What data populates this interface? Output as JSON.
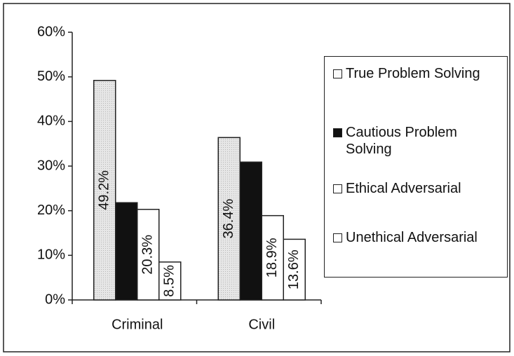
{
  "chart_data": {
    "type": "bar",
    "categories": [
      "Criminal",
      "Civil"
    ],
    "series": [
      {
        "name": "True Problem Solving",
        "color": "#e2e2e2",
        "values": [
          49.2,
          36.4
        ],
        "value_labels": [
          "49.2%",
          "36.4%"
        ]
      },
      {
        "name": "Cautious Problem Solving",
        "color": "#111111",
        "values": [
          21.8,
          30.9
        ]
      },
      {
        "name": "Ethical Adversarial",
        "color": "#ffffff",
        "values": [
          20.3,
          18.9
        ],
        "value_labels": [
          "20.3%",
          "18.9%"
        ]
      },
      {
        "name": "Unethical Adversarial",
        "color": "#ffffff",
        "values": [
          8.5,
          13.6
        ],
        "value_labels": [
          "8.5%",
          "13.6%"
        ]
      }
    ],
    "ylim": [
      0,
      60
    ],
    "yticks": [
      {
        "value": 0,
        "label": "0%"
      },
      {
        "value": 10,
        "label": "10%"
      },
      {
        "value": 20,
        "label": "20%"
      },
      {
        "value": 30,
        "label": "30%"
      },
      {
        "value": 40,
        "label": "40%"
      },
      {
        "value": 50,
        "label": "50%"
      },
      {
        "value": 60,
        "label": "60%"
      }
    ],
    "legend": "right"
  }
}
